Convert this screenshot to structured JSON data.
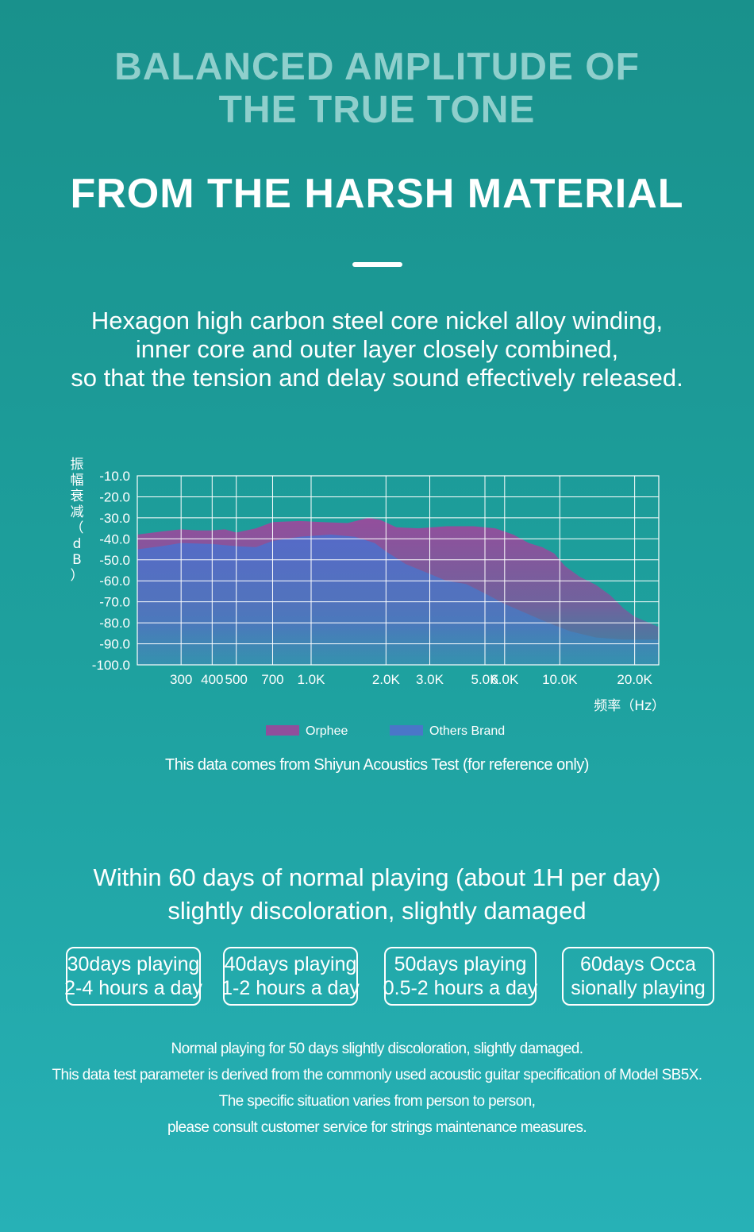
{
  "header": {
    "headline_lines": [
      "BALANCED AMPLITUDE OF",
      "THE TRUE TONE"
    ],
    "subheadline": "FROM THE HARSH MATERIAL"
  },
  "intro": {
    "lines": [
      "Hexagon high carbon steel core nickel alloy winding,",
      "inner core and outer layer closely combined,",
      "so that the tension and delay sound effectively released."
    ]
  },
  "chart_data": {
    "type": "area",
    "ylabel": "振幅衰减（dB）",
    "xlabel": "频率（Hz）",
    "ylim": [
      -100,
      -10
    ],
    "yticks": [
      "-10.0",
      "-20.0",
      "-30.0",
      "-40.0",
      "-50.0",
      "-60.0",
      "-70.0",
      "-80.0",
      "-90.0",
      "-100.0"
    ],
    "xticks": [
      {
        "label": "300",
        "hz": 300
      },
      {
        "label": "400",
        "hz": 400
      },
      {
        "label": "500",
        "hz": 500
      },
      {
        "label": "700",
        "hz": 700
      },
      {
        "label": "1.0K",
        "hz": 1000
      },
      {
        "label": "2.0K",
        "hz": 2000
      },
      {
        "label": "3.0K",
        "hz": 3000
      },
      {
        "label": "5.0K",
        "hz": 5000
      },
      {
        "label": "6.0K",
        "hz": 6000
      },
      {
        "label": "10.0K",
        "hz": 10000
      },
      {
        "label": "20.0K",
        "hz": 20000
      }
    ],
    "xscale": "log",
    "xlim": [
      200,
      25000
    ],
    "grid": true,
    "legend_position": "bottom-center",
    "series": [
      {
        "name": "Orphee",
        "color": "#8f4f9c",
        "points": [
          [
            200,
            -38
          ],
          [
            250,
            -36.5
          ],
          [
            300,
            -35.5
          ],
          [
            350,
            -36
          ],
          [
            400,
            -36
          ],
          [
            450,
            -35.5
          ],
          [
            500,
            -37
          ],
          [
            600,
            -35
          ],
          [
            700,
            -32
          ],
          [
            900,
            -31.5
          ],
          [
            1100,
            -32
          ],
          [
            1400,
            -32.5
          ],
          [
            1700,
            -30
          ],
          [
            1900,
            -31
          ],
          [
            2200,
            -34.5
          ],
          [
            2700,
            -35
          ],
          [
            3500,
            -34
          ],
          [
            4500,
            -34
          ],
          [
            5500,
            -35
          ],
          [
            6500,
            -38
          ],
          [
            7500,
            -42
          ],
          [
            8500,
            -44
          ],
          [
            9500,
            -47
          ],
          [
            10500,
            -53
          ],
          [
            12000,
            -58
          ],
          [
            14000,
            -62
          ],
          [
            16000,
            -67
          ],
          [
            18000,
            -73
          ],
          [
            20000,
            -77
          ],
          [
            25000,
            -82
          ]
        ]
      },
      {
        "name": "Others Brand",
        "color": "#4a76c8",
        "points": [
          [
            200,
            -45
          ],
          [
            250,
            -43.5
          ],
          [
            300,
            -42
          ],
          [
            400,
            -42.5
          ],
          [
            500,
            -43.5
          ],
          [
            600,
            -44
          ],
          [
            700,
            -41
          ],
          [
            900,
            -39
          ],
          [
            1200,
            -38
          ],
          [
            1500,
            -39
          ],
          [
            1800,
            -42
          ],
          [
            2000,
            -46
          ],
          [
            2400,
            -52
          ],
          [
            2900,
            -56
          ],
          [
            3500,
            -60
          ],
          [
            4200,
            -61.5
          ],
          [
            5000,
            -66
          ],
          [
            6000,
            -71
          ],
          [
            7500,
            -76
          ],
          [
            9000,
            -80
          ],
          [
            11000,
            -84
          ],
          [
            14000,
            -87
          ],
          [
            18000,
            -88
          ],
          [
            25000,
            -88
          ]
        ]
      }
    ]
  },
  "source_note": "This data comes from Shiyun Acoustics Test (for reference only)",
  "usage": {
    "lines": [
      "Within 60 days of normal playing (about 1H per day)",
      "slightly discoloration, slightly damaged"
    ],
    "cards": [
      {
        "line1": "30days playing",
        "line2": "2-4 hours a day"
      },
      {
        "line1": "40days playing",
        "line2": "1-2 hours a day"
      },
      {
        "line1": "50days playing",
        "line2": "0.5-2 hours a day"
      },
      {
        "line1": "60days Occa",
        "line2": "sionally playing"
      }
    ]
  },
  "footer": {
    "lines": [
      "Normal playing for 50 days slightly discoloration, slightly damaged.",
      "This data test parameter is derived from the commonly used acoustic guitar specification of Model SB5X.",
      "The specific situation varies from person to person,",
      "please consult customer service for strings maintenance measures."
    ]
  }
}
